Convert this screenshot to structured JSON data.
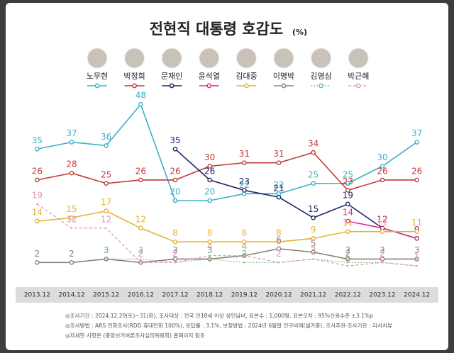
{
  "chart_data": {
    "type": "line",
    "title": "전현직 대통령 호감도",
    "subtitle": "(%)",
    "categories": [
      "2013.12",
      "2014.12",
      "2015.12",
      "2016.12",
      "2017.12",
      "2018.12",
      "2019.12",
      "2020.12",
      "2021.12",
      "2022.12",
      "2023.12",
      "2024.12"
    ],
    "series": [
      {
        "name": "노무현",
        "color": "#3cb2c9",
        "dash": "solid",
        "values": [
          35,
          37,
          36,
          48,
          20,
          20,
          22,
          22,
          25,
          25,
          30,
          37
        ]
      },
      {
        "name": "박정희",
        "color": "#c23a3a",
        "dash": "solid",
        "values": [
          26,
          28,
          25,
          26,
          26,
          30,
          31,
          31,
          34,
          23,
          26,
          26
        ]
      },
      {
        "name": "문재인",
        "color": "#1f2766",
        "dash": "solid",
        "values": [
          null,
          null,
          null,
          null,
          35,
          26,
          23,
          21,
          15,
          19,
          12,
          9
        ]
      },
      {
        "name": "윤석열",
        "color": "#d1308e",
        "dash": "solid",
        "values": [
          null,
          null,
          null,
          null,
          null,
          null,
          null,
          null,
          null,
          14,
          12,
          9
        ]
      },
      {
        "name": "김대중",
        "color": "#e8b22f",
        "dash": "solid",
        "values": [
          14,
          15,
          17,
          12,
          8,
          8,
          8,
          8,
          9,
          11,
          11,
          11
        ]
      },
      {
        "name": "이명박",
        "color": "#8a8276",
        "dash": "solid",
        "values": [
          2,
          2,
          3,
          2,
          3,
          3,
          4,
          6,
          5,
          3,
          3,
          3
        ]
      },
      {
        "name": "김영삼",
        "color": "#6cbf7c",
        "dash": "dotted",
        "values": [
          null,
          null,
          3,
          3,
          2,
          3,
          2,
          2,
          3,
          2,
          2,
          1
        ]
      },
      {
        "name": "박근혜",
        "color": "#e796b9",
        "dash": "dashed",
        "values": [
          19,
          12,
          12,
          2,
          2,
          4,
          4,
          2,
          3,
          1,
          2,
          1
        ]
      }
    ],
    "notes": [
      "◎조사기간 : 2024.12.29(토)~31(화), 조사대상 : 전국 만18세 이상 성인남녀, 표본수 : 1,000명, 표본오차 : 95%신뢰수준 ±3.1%p",
      "◎조사방법 : ARS 전화조사(RDD 휴대전화 100%), 응답률 : 3.1%, 보정방법 : 2024년 6월말 인구비례(셀가중), 조사주관·조사기관 : 리서치뷰",
      "◎자세한 사항은 (중앙선거여론조사심의위원회) 홈페이지 참조"
    ]
  }
}
